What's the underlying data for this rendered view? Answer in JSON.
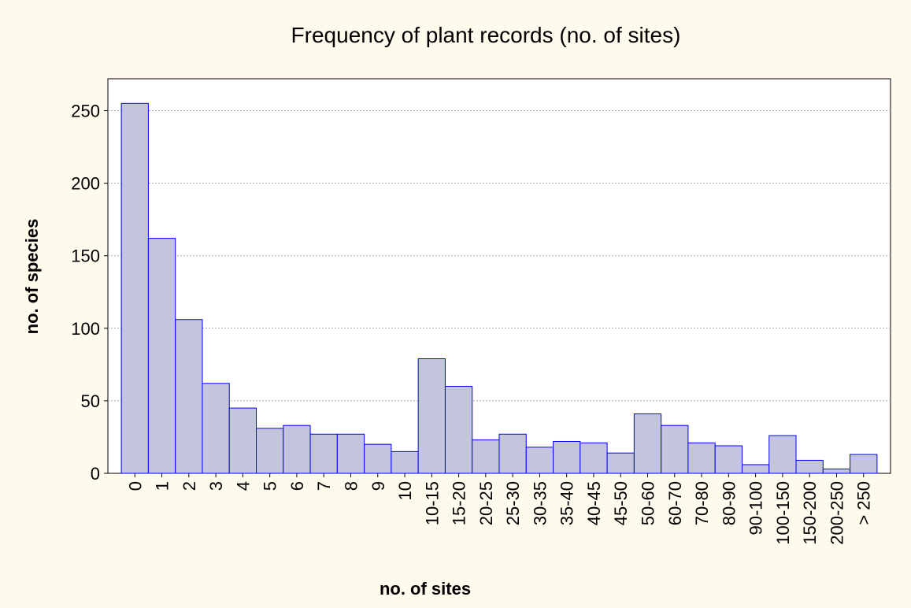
{
  "chart_data": {
    "type": "bar",
    "title": "Frequency of plant records (no. of sites)",
    "x_label": "no. of sites",
    "y_label": "no. of species",
    "categories": [
      "0",
      "1",
      "2",
      "3",
      "4",
      "5",
      "6",
      "7",
      "8",
      "9",
      "10",
      "10-15",
      "15-20",
      "20-25",
      "25-30",
      "30-35",
      "35-40",
      "40-45",
      "45-50",
      "50-60",
      "60-70",
      "70-80",
      "80-90",
      "90-100",
      "100-150",
      "150-200",
      "200-250",
      "> 250"
    ],
    "values": [
      255,
      162,
      106,
      62,
      45,
      31,
      33,
      27,
      27,
      20,
      15,
      79,
      60,
      23,
      27,
      18,
      22,
      21,
      14,
      41,
      33,
      21,
      19,
      6,
      26,
      9,
      3,
      13
    ],
    "color": "#c4c4dc",
    "edge_color": "#0000ff",
    "ylim": [
      0,
      272
    ],
    "yticks": [
      0,
      50,
      100,
      150,
      200,
      250
    ],
    "grid": true
  }
}
